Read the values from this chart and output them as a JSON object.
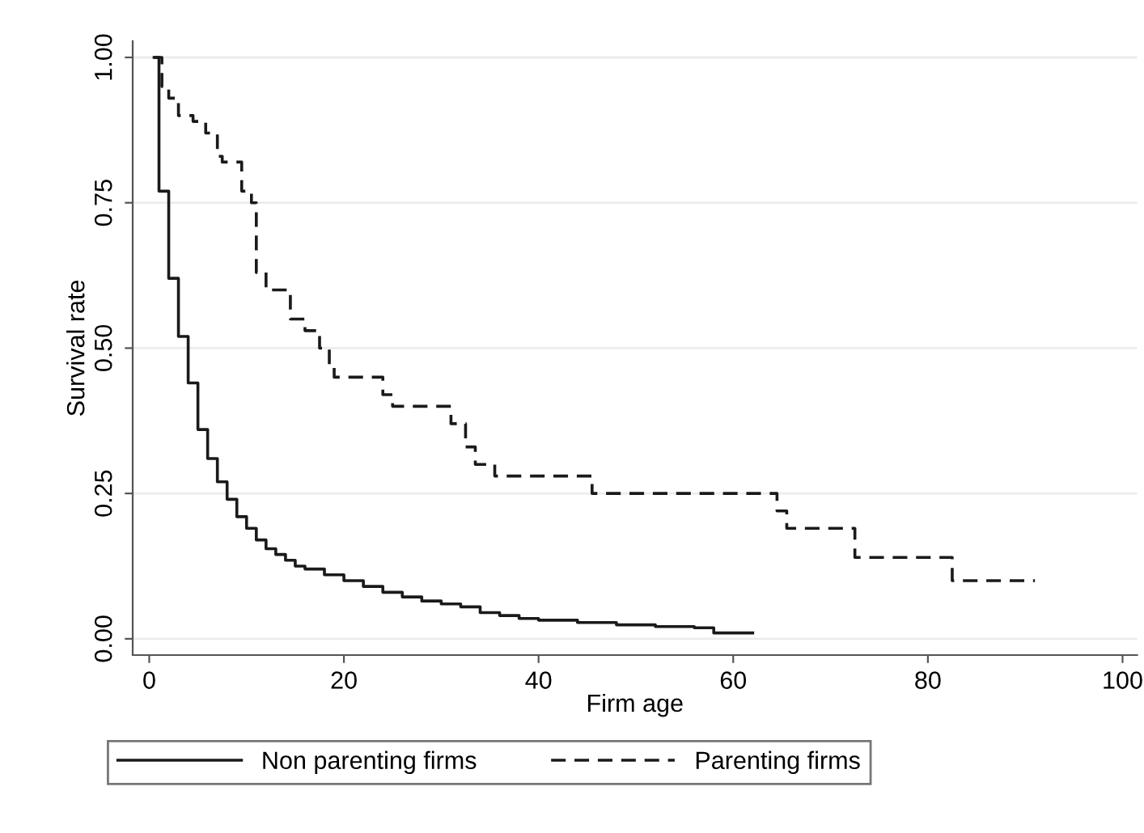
{
  "chart_data": {
    "type": "step",
    "xlabel": "Firm age",
    "ylabel": "Survival rate",
    "xlim": [
      -1.7,
      101.5
    ],
    "ylim": [
      -0.028,
      1.028
    ],
    "xticks": [
      0,
      20,
      40,
      60,
      80,
      100
    ],
    "yticks": [
      {
        "value": 0,
        "label": "0.00"
      },
      {
        "value": 0.25,
        "label": "0.25"
      },
      {
        "value": 0.5,
        "label": "0.50"
      },
      {
        "value": 0.75,
        "label": "0.75"
      },
      {
        "value": 1,
        "label": "1.00"
      }
    ],
    "grid": "y",
    "legend": "bottom",
    "series": [
      {
        "name": "Non parenting firms",
        "color": "#1a1a1a",
        "line_style": "solid",
        "x": [
          0.5,
          1,
          2,
          3,
          4,
          5,
          6,
          7,
          8,
          9,
          10,
          11,
          12,
          13,
          14,
          15,
          16,
          18,
          20,
          22,
          24,
          26,
          28,
          30,
          32,
          34,
          36,
          38,
          40,
          44,
          48,
          52,
          56,
          58,
          60,
          62
        ],
        "values": [
          1,
          0.77,
          0.62,
          0.52,
          0.44,
          0.36,
          0.31,
          0.27,
          0.24,
          0.21,
          0.19,
          0.17,
          0.155,
          0.145,
          0.135,
          0.125,
          0.12,
          0.11,
          0.1,
          0.09,
          0.08,
          0.072,
          0.065,
          0.06,
          0.055,
          0.045,
          0.04,
          0.035,
          0.032,
          0.028,
          0.024,
          0.021,
          0.019,
          0.01,
          0.01,
          0.01
        ]
      },
      {
        "name": "Parenting firms",
        "color": "#1a1a1a",
        "line_style": "dashed",
        "x": [
          0.5,
          1.3,
          2,
          3,
          4.5,
          5.8,
          7,
          7.5,
          9.5,
          10.5,
          11,
          12,
          14.5,
          16,
          17.5,
          18.5,
          19,
          24,
          25,
          31,
          32.5,
          33.5,
          35.5,
          45.5,
          64.5,
          65.5,
          72.5,
          82.5,
          91
        ],
        "values": [
          1,
          0.95,
          0.93,
          0.9,
          0.89,
          0.87,
          0.83,
          0.82,
          0.77,
          0.75,
          0.63,
          0.6,
          0.55,
          0.53,
          0.5,
          0.47,
          0.45,
          0.42,
          0.4,
          0.37,
          0.33,
          0.3,
          0.28,
          0.25,
          0.22,
          0.19,
          0.14,
          0.1,
          0.1
        ]
      }
    ]
  }
}
